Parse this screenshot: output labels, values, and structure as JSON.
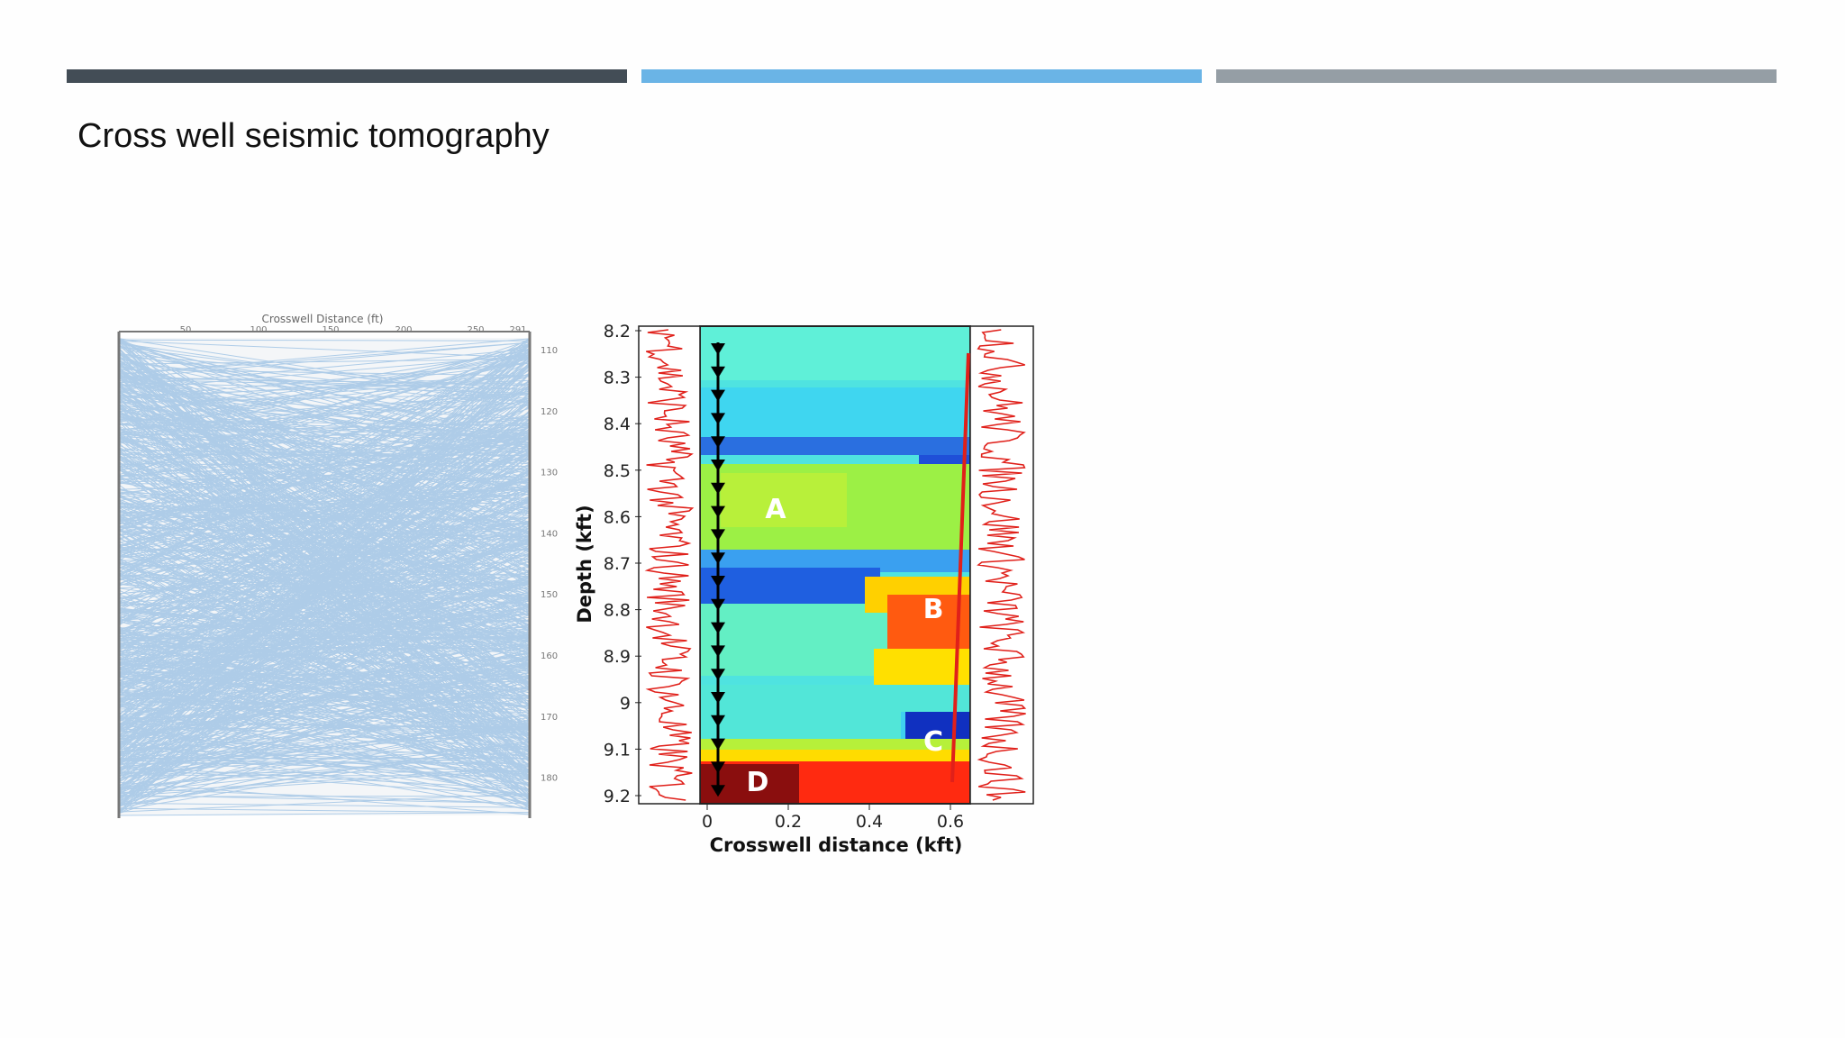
{
  "title": "Cross well seismic tomography",
  "ray_figure": {
    "axis_title": "Crosswell Distance (ft)",
    "top_ticks": [
      "50",
      "100",
      "150",
      "200",
      "250",
      "291"
    ],
    "right_ticks": [
      "110",
      "120",
      "130",
      "140",
      "150",
      "160",
      "170",
      "180"
    ]
  },
  "tomogram": {
    "y_label": "Depth (kft)",
    "x_label": "Crosswell distance (kft)",
    "y_ticks": [
      "8.2",
      "8.3",
      "8.4",
      "8.5",
      "8.6",
      "8.7",
      "8.8",
      "8.9",
      "9",
      "9.1",
      "9.2"
    ],
    "x_ticks": [
      "0",
      "0.2",
      "0.4",
      "0.6"
    ],
    "regions": [
      "A",
      "B",
      "C",
      "D"
    ]
  }
}
